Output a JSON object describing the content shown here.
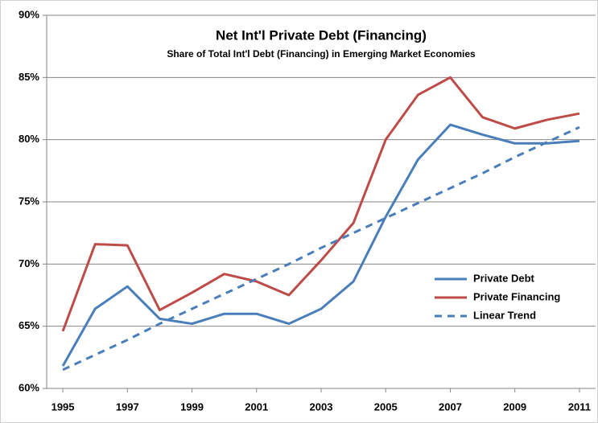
{
  "chart_data": {
    "type": "line",
    "title": "Net Int'l Private Debt (Financing)",
    "subtitle": "Share of Total Int'l Debt (Financing) in Emerging Market Economies",
    "x": [
      1995,
      1996,
      1997,
      1998,
      1999,
      2000,
      2001,
      2002,
      2003,
      2004,
      2005,
      2006,
      2007,
      2008,
      2009,
      2010,
      2011
    ],
    "series": [
      {
        "name": "Private Debt",
        "color": "#4a7ebb",
        "style": "solid",
        "values": [
          61.8,
          66.4,
          68.2,
          65.6,
          65.2,
          66.0,
          66.0,
          65.2,
          66.4,
          68.6,
          73.8,
          78.4,
          81.2,
          80.4,
          79.7,
          79.7,
          79.9
        ]
      },
      {
        "name": "Private Financing",
        "color": "#be4b48",
        "style": "solid",
        "values": [
          64.6,
          71.6,
          71.5,
          66.3,
          67.7,
          69.2,
          68.6,
          67.5,
          70.3,
          73.3,
          80.0,
          83.6,
          85.0,
          81.8,
          80.9,
          81.6,
          82.1
        ]
      },
      {
        "name": "Linear Trend",
        "color": "#4a7ebb",
        "style": "dashed",
        "values": [
          61.5,
          62.7,
          63.9,
          65.2,
          66.4,
          67.6,
          68.8,
          70.0,
          71.3,
          72.5,
          73.7,
          74.9,
          76.1,
          77.3,
          78.6,
          79.8,
          81.0
        ]
      }
    ],
    "xlim": [
      1994.5,
      2011.5
    ],
    "xticks": [
      1995,
      1997,
      1999,
      2001,
      2003,
      2005,
      2007,
      2009,
      2011
    ],
    "ylim": [
      60,
      90
    ],
    "yticks": [
      {
        "value": 60,
        "label": "60%"
      },
      {
        "value": 65,
        "label": "65%"
      },
      {
        "value": 70,
        "label": "70%"
      },
      {
        "value": 75,
        "label": "75%"
      },
      {
        "value": 80,
        "label": "80%"
      },
      {
        "value": 85,
        "label": "85%"
      },
      {
        "value": 90,
        "label": "90%"
      }
    ],
    "grid": true,
    "legend": "lower right"
  }
}
